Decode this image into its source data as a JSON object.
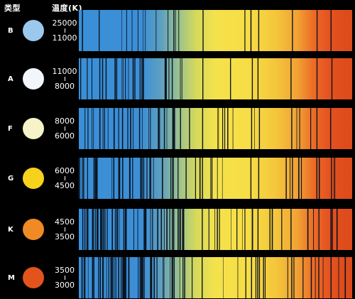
{
  "headers": {
    "type": "类型",
    "temperature": "温度(K)"
  },
  "classes": [
    {
      "letter": "B",
      "temp_high": "25000",
      "temp_low": "11000",
      "color": "#9cc8ec"
    },
    {
      "letter": "A",
      "temp_high": "11000",
      "temp_low": "8000",
      "color": "#f2f6fb"
    },
    {
      "letter": "F",
      "temp_high": "8000",
      "temp_low": "6000",
      "color": "#f7f3c8"
    },
    {
      "letter": "G",
      "temp_high": "6000",
      "temp_low": "4500",
      "color": "#f6d21c"
    },
    {
      "letter": "K",
      "temp_high": "4500",
      "temp_low": "3500",
      "color": "#f08a24"
    },
    {
      "letter": "M",
      "temp_high": "3500",
      "temp_low": "3000",
      "color": "#e2541c"
    }
  ]
}
